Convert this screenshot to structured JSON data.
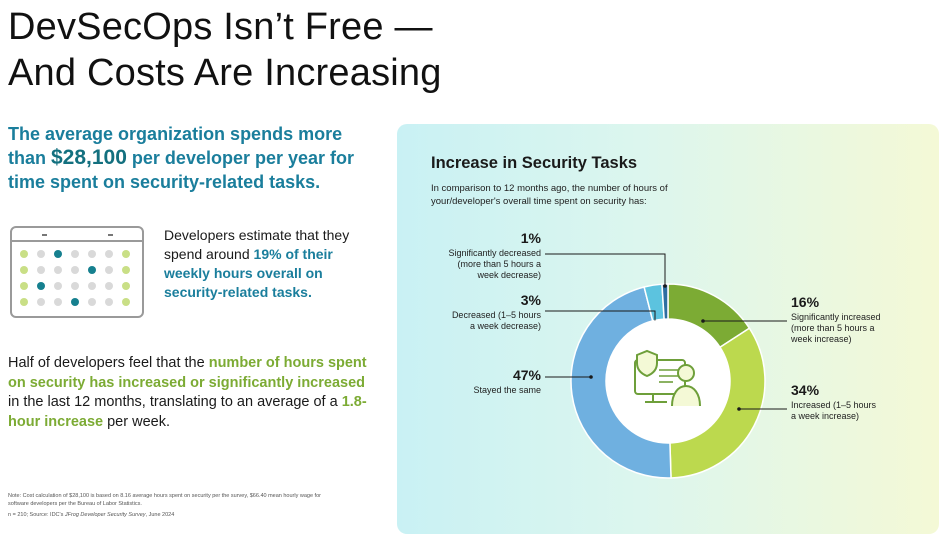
{
  "title": {
    "line1": "DevSecOps Isn’t Free —",
    "line2": "And Costs Are Increasing"
  },
  "lead": {
    "before": "The average organization spends more than ",
    "amount": "$28,100",
    "after": " per developer per year for time spent on security-related tasks."
  },
  "estimate": {
    "before": "Developers estimate that they spend around ",
    "highlight": "19% of their weekly hours overall on security-related tasks."
  },
  "half": {
    "part1": "Half of developers feel that the ",
    "hl1": "number of hours spent on security has increased or significantly increased",
    "part2": " in the last 12 months, translating to an average of a ",
    "hl2": "1.8-hour increase",
    "part3": " per week."
  },
  "note": {
    "line1": "Note: Cost calculation of $28,100 is based on 8.16 average hours spent on security per the survey, $66.40 mean hourly wage for software developers per the Bureau of Labor Statistics.",
    "line2_prefix": "n = 210; Source: IDC's ",
    "line2_italic": "JFrog Developer Security Survey",
    "line2_suffix": ", June 2024"
  },
  "colors": {
    "teal": "#1a7e9c",
    "green": "#7cab34",
    "lime": "#bcd94e",
    "blue": "#6fb0e0",
    "cyan": "#5cc3df",
    "darkgreen": "#6e9f3a"
  },
  "icons": {
    "calendar": "calendar-icon",
    "center": "developer-security-icon"
  },
  "chart_data": {
    "type": "pie",
    "title": "Increase in Security Tasks",
    "subtitle": "In comparison to 12 months ago, the number of hours of your/developer's overall time spent on security has:",
    "slices": [
      {
        "label": "Significantly increased (more than 5 hours a week increase)",
        "value": 16,
        "pct": "16%",
        "lines": [
          "Significantly increased",
          "(more than 5 hours a",
          "week increase)"
        ],
        "color": "#7cab34"
      },
      {
        "label": "Increased (1–5 hours a week increase)",
        "value": 34,
        "pct": "34%",
        "lines": [
          "Increased (1–5 hours",
          "a week increase)"
        ],
        "color": "#bcd94e"
      },
      {
        "label": "Stayed the same",
        "value": 47,
        "pct": "47%",
        "lines": [
          "Stayed the same"
        ],
        "color": "#6fb0e0"
      },
      {
        "label": "Decreased (1–5 hours a week decrease)",
        "value": 3,
        "pct": "3%",
        "lines": [
          "Decreased (1–5 hours",
          "a week decrease)"
        ],
        "color": "#5cc3df"
      },
      {
        "label": "Significantly decreased (more than 5 hours a week decrease)",
        "value": 1,
        "pct": "1%",
        "lines": [
          "Significantly decreased",
          "(more than 5 hours a",
          "week decrease)"
        ],
        "color": "#2e6ea1"
      }
    ]
  }
}
